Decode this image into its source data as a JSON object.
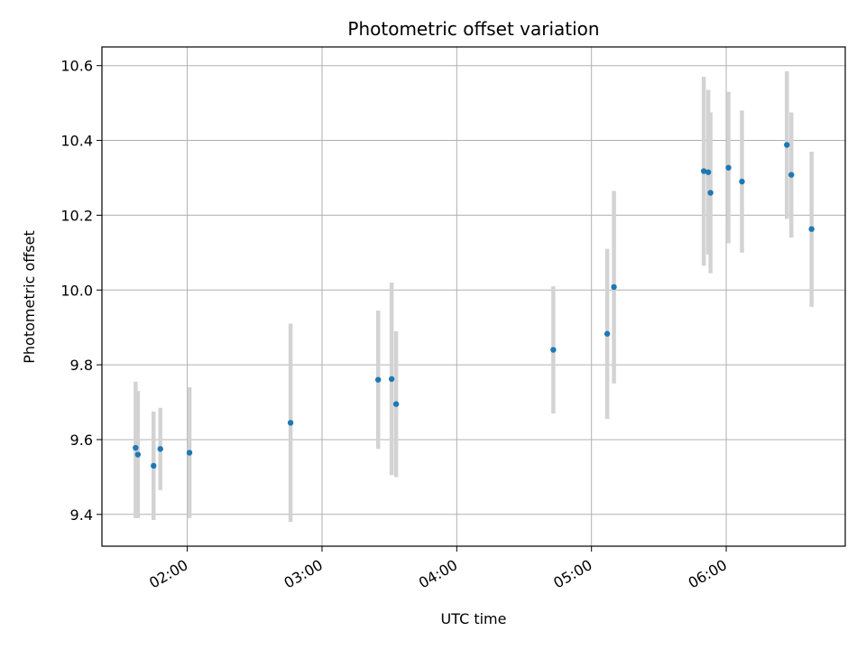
{
  "chart_data": {
    "type": "scatter",
    "title": "Photometric offset variation",
    "xlabel": "UTC time",
    "ylabel": "Photometric offset",
    "grid": true,
    "legend": "none",
    "x_ticks": [
      "02:00",
      "03:00",
      "04:00",
      "05:00",
      "06:00"
    ],
    "y_ticks": [
      "9.4",
      "9.6",
      "9.8",
      "10.0",
      "10.2",
      "10.4",
      "10.6"
    ],
    "xlim": [
      "01:22",
      "06:53"
    ],
    "ylim": [
      9.315,
      10.65
    ],
    "colors": {
      "point": "#1f77b4",
      "errorbar": "#d3d3d3",
      "grid": "#b0b0b0"
    },
    "points": [
      {
        "time": "01:37",
        "y": 9.578,
        "low": 9.39,
        "high": 9.755
      },
      {
        "time": "01:38",
        "y": 9.56,
        "low": 9.39,
        "high": 9.73
      },
      {
        "time": "01:45",
        "y": 9.53,
        "low": 9.385,
        "high": 9.675
      },
      {
        "time": "01:48",
        "y": 9.575,
        "low": 9.465,
        "high": 9.685
      },
      {
        "time": "02:01",
        "y": 9.565,
        "low": 9.39,
        "high": 9.74
      },
      {
        "time": "02:46",
        "y": 9.645,
        "low": 9.38,
        "high": 9.91
      },
      {
        "time": "03:25",
        "y": 9.76,
        "low": 9.575,
        "high": 9.945
      },
      {
        "time": "03:31",
        "y": 9.762,
        "low": 9.505,
        "high": 10.02
      },
      {
        "time": "03:33",
        "y": 9.695,
        "low": 9.5,
        "high": 9.89
      },
      {
        "time": "04:43",
        "y": 9.84,
        "low": 9.67,
        "high": 10.01
      },
      {
        "time": "05:07",
        "y": 9.883,
        "low": 9.655,
        "high": 10.11
      },
      {
        "time": "05:10",
        "y": 10.008,
        "low": 9.75,
        "high": 10.265
      },
      {
        "time": "05:50",
        "y": 10.318,
        "low": 10.065,
        "high": 10.57
      },
      {
        "time": "05:52",
        "y": 10.315,
        "low": 10.095,
        "high": 10.535
      },
      {
        "time": "05:53",
        "y": 10.26,
        "low": 10.045,
        "high": 10.475
      },
      {
        "time": "06:01",
        "y": 10.327,
        "low": 10.125,
        "high": 10.53
      },
      {
        "time": "06:07",
        "y": 10.29,
        "low": 10.1,
        "high": 10.48
      },
      {
        "time": "06:27",
        "y": 10.388,
        "low": 10.19,
        "high": 10.585
      },
      {
        "time": "06:29",
        "y": 10.308,
        "low": 10.14,
        "high": 10.475
      },
      {
        "time": "06:38",
        "y": 10.163,
        "low": 9.955,
        "high": 10.37
      }
    ]
  }
}
